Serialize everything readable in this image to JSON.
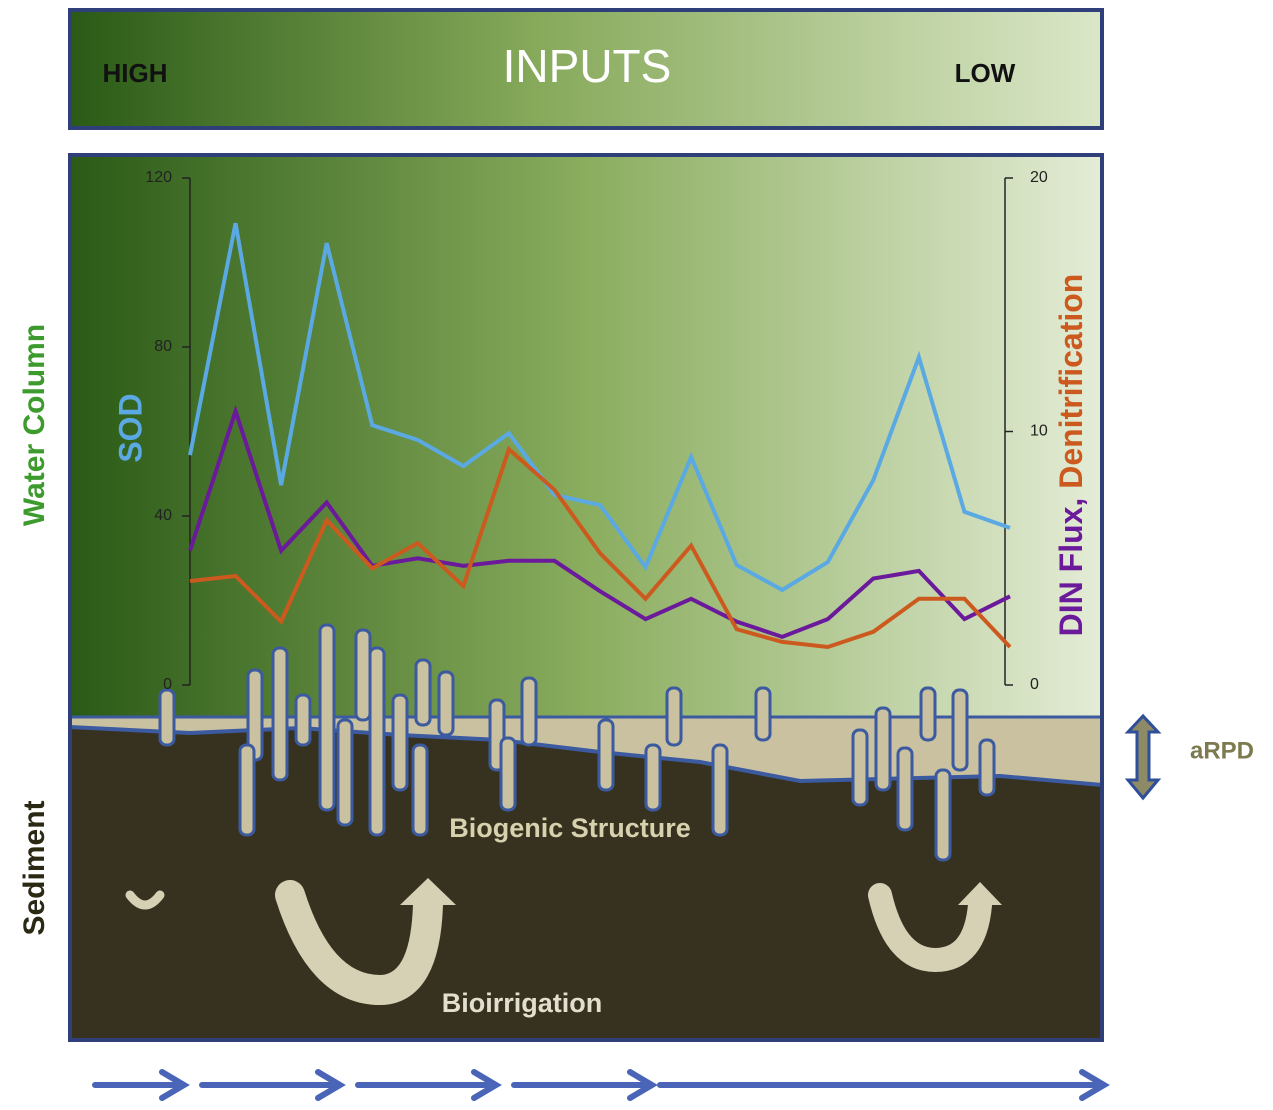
{
  "header": {
    "high": "HIGH",
    "title": "INPUTS",
    "low": "LOW"
  },
  "labels": {
    "water_column": "Water Column",
    "sediment": "Sediment",
    "arpd": "aRPD",
    "biogenic_structure": "Biogenic Structure",
    "bioirrigation": "Bioirrigation"
  },
  "chart_data": {
    "type": "line",
    "categories": [
      null,
      null,
      null,
      null,
      null,
      null,
      null,
      null,
      null,
      null,
      null,
      null,
      null,
      null,
      null,
      null,
      null,
      null,
      null
    ],
    "series": [
      {
        "name": "SOD",
        "color": "#5aa9e2",
        "values": [
          54.4,
          109.3,
          47.3,
          104.6,
          61.5,
          58,
          51.8,
          59.6,
          45,
          42.6,
          27.9,
          54,
          28.4,
          22.5,
          29.1,
          48.5,
          77.6,
          41,
          37.2
        ]
      },
      {
        "name": "DIN Flux,",
        "color": "#6a1a9a",
        "axis": "y2",
        "values": [
          5.3,
          10.8,
          5.3,
          7.2,
          4.7,
          5,
          4.7,
          4.9,
          4.9,
          3.7,
          2.6,
          3.4,
          2.5,
          1.9,
          2.6,
          4.2,
          4.5,
          2.6,
          3.5
        ]
      },
      {
        "name": "Denitrification",
        "color": "#cc5a1e",
        "axis": "y2",
        "values": [
          4.1,
          4.3,
          2.5,
          6.5,
          4.6,
          5.6,
          3.9,
          9.3,
          7.7,
          5.2,
          3.4,
          5.5,
          2.2,
          1.7,
          1.5,
          2.1,
          3.4,
          3.4,
          1.5
        ]
      }
    ],
    "ylim": [
      0,
      120
    ],
    "yticks": [
      0,
      40,
      80,
      120
    ],
    "y2lim": [
      0,
      20
    ],
    "y2ticks": [
      0,
      10,
      20
    ]
  }
}
